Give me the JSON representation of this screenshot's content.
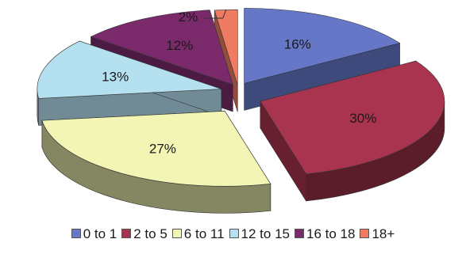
{
  "chart_data": {
    "type": "pie",
    "style": "3d-exploded",
    "title": "",
    "categories": [
      "0 to 1",
      "2 to 5",
      "6 to 11",
      "12 to 15",
      "16 to 18",
      "18+"
    ],
    "values": [
      16,
      30,
      27,
      13,
      12,
      2
    ],
    "labels": [
      "16%",
      "30%",
      "27%",
      "13%",
      "12%",
      "2%"
    ],
    "colors": [
      "#6677c8",
      "#a8344f",
      "#f2f5b4",
      "#b4e0f0",
      "#7a2a6a",
      "#ef7b62"
    ],
    "legend_position": "bottom"
  }
}
